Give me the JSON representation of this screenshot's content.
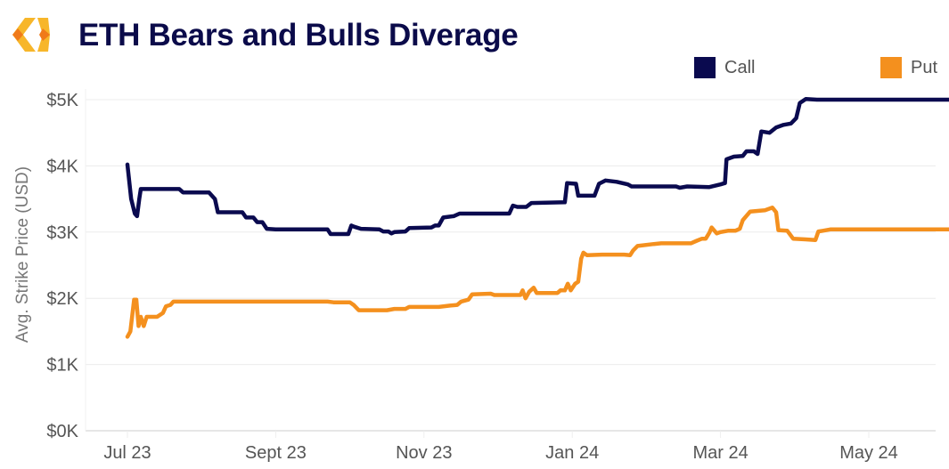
{
  "header": {
    "title": "ETH Bears and Bulls Diverage",
    "logo_icon": "hexagon-brackets-logo-icon"
  },
  "colors": {
    "call": "#0a0a4f",
    "put": "#f4901e",
    "title": "#0b0b4a",
    "grid": "#ececec"
  },
  "chart_data": {
    "type": "line",
    "title": "ETH Bears and Bulls Diverage",
    "xlabel": "",
    "ylabel": "Avg. Strike Price (USD)",
    "ylim": [
      0,
      5
    ],
    "y_unit": "thousand USD",
    "yticks": [
      0,
      1,
      2,
      3,
      4,
      5
    ],
    "ytick_labels": [
      "$0K",
      "$1K",
      "$2K",
      "$3K",
      "$4K",
      "$5K"
    ],
    "x_unit": "months since 2023-07-01",
    "xlim": [
      -0.2,
      11.5
    ],
    "xticks": [
      0,
      2,
      4,
      6,
      8,
      10
    ],
    "xtick_labels": [
      "Jul 23",
      "Sept 23",
      "Nov 23",
      "Jan 24",
      "Mar 24",
      "May 24"
    ],
    "grid": "horizontal",
    "legend_position": "top",
    "legend": [
      "Call",
      "Put"
    ],
    "series": [
      {
        "name": "Call",
        "points": [
          [
            0.0,
            4.02
          ],
          [
            0.05,
            3.5
          ],
          [
            0.1,
            3.28
          ],
          [
            0.13,
            3.24
          ],
          [
            0.16,
            3.5
          ],
          [
            0.18,
            3.65
          ],
          [
            0.5,
            3.65
          ],
          [
            0.7,
            3.65
          ],
          [
            0.75,
            3.6
          ],
          [
            1.1,
            3.6
          ],
          [
            1.18,
            3.5
          ],
          [
            1.22,
            3.3
          ],
          [
            1.55,
            3.3
          ],
          [
            1.6,
            3.22
          ],
          [
            1.7,
            3.22
          ],
          [
            1.75,
            3.15
          ],
          [
            1.82,
            3.15
          ],
          [
            1.88,
            3.05
          ],
          [
            2.0,
            3.04
          ],
          [
            2.5,
            3.04
          ],
          [
            2.7,
            3.04
          ],
          [
            2.74,
            2.97
          ],
          [
            2.98,
            2.97
          ],
          [
            3.02,
            3.1
          ],
          [
            3.06,
            3.08
          ],
          [
            3.15,
            3.05
          ],
          [
            3.4,
            3.04
          ],
          [
            3.45,
            3.01
          ],
          [
            3.52,
            3.01
          ],
          [
            3.56,
            2.98
          ],
          [
            3.6,
            3.0
          ],
          [
            3.75,
            3.01
          ],
          [
            3.8,
            3.06
          ],
          [
            4.1,
            3.07
          ],
          [
            4.15,
            3.1
          ],
          [
            4.2,
            3.1
          ],
          [
            4.26,
            3.22
          ],
          [
            4.4,
            3.24
          ],
          [
            4.48,
            3.28
          ],
          [
            5.0,
            3.28
          ],
          [
            5.15,
            3.28
          ],
          [
            5.2,
            3.4
          ],
          [
            5.26,
            3.38
          ],
          [
            5.38,
            3.38
          ],
          [
            5.45,
            3.44
          ],
          [
            5.9,
            3.45
          ],
          [
            5.93,
            3.74
          ],
          [
            6.05,
            3.73
          ],
          [
            6.08,
            3.55
          ],
          [
            6.3,
            3.55
          ],
          [
            6.36,
            3.73
          ],
          [
            6.45,
            3.78
          ],
          [
            6.6,
            3.76
          ],
          [
            6.75,
            3.72
          ],
          [
            6.8,
            3.69
          ],
          [
            7.1,
            3.69
          ],
          [
            7.4,
            3.69
          ],
          [
            7.45,
            3.67
          ],
          [
            7.55,
            3.69
          ],
          [
            7.85,
            3.68
          ],
          [
            8.0,
            3.72
          ],
          [
            8.06,
            3.74
          ],
          [
            8.08,
            4.1
          ],
          [
            8.18,
            4.14
          ],
          [
            8.3,
            4.15
          ],
          [
            8.35,
            4.22
          ],
          [
            8.45,
            4.22
          ],
          [
            8.5,
            4.18
          ],
          [
            8.55,
            4.52
          ],
          [
            8.66,
            4.5
          ],
          [
            8.75,
            4.58
          ],
          [
            8.85,
            4.62
          ],
          [
            8.95,
            4.64
          ],
          [
            9.02,
            4.72
          ],
          [
            9.07,
            4.95
          ],
          [
            9.15,
            5.01
          ],
          [
            9.3,
            5.0
          ],
          [
            10.0,
            5.0
          ],
          [
            11.2,
            5.0
          ]
        ]
      },
      {
        "name": "Put",
        "points": [
          [
            0.0,
            1.42
          ],
          [
            0.04,
            1.5
          ],
          [
            0.09,
            1.98
          ],
          [
            0.12,
            1.98
          ],
          [
            0.15,
            1.58
          ],
          [
            0.18,
            1.72
          ],
          [
            0.22,
            1.58
          ],
          [
            0.26,
            1.72
          ],
          [
            0.35,
            1.72
          ],
          [
            0.4,
            1.72
          ],
          [
            0.48,
            1.78
          ],
          [
            0.52,
            1.88
          ],
          [
            0.58,
            1.9
          ],
          [
            0.62,
            1.95
          ],
          [
            1.0,
            1.95
          ],
          [
            2.0,
            1.95
          ],
          [
            2.7,
            1.95
          ],
          [
            2.78,
            1.94
          ],
          [
            3.0,
            1.94
          ],
          [
            3.05,
            1.9
          ],
          [
            3.12,
            1.82
          ],
          [
            3.3,
            1.82
          ],
          [
            3.5,
            1.82
          ],
          [
            3.6,
            1.84
          ],
          [
            3.75,
            1.84
          ],
          [
            3.8,
            1.87
          ],
          [
            4.2,
            1.87
          ],
          [
            4.35,
            1.89
          ],
          [
            4.45,
            1.9
          ],
          [
            4.5,
            1.95
          ],
          [
            4.6,
            1.98
          ],
          [
            4.65,
            2.06
          ],
          [
            4.9,
            2.07
          ],
          [
            4.95,
            2.05
          ],
          [
            5.3,
            2.05
          ],
          [
            5.33,
            2.12
          ],
          [
            5.37,
            2.0
          ],
          [
            5.42,
            2.1
          ],
          [
            5.48,
            2.16
          ],
          [
            5.52,
            2.08
          ],
          [
            5.8,
            2.08
          ],
          [
            5.84,
            2.12
          ],
          [
            5.9,
            2.12
          ],
          [
            5.94,
            2.22
          ],
          [
            5.98,
            2.12
          ],
          [
            6.04,
            2.22
          ],
          [
            6.08,
            2.25
          ],
          [
            6.12,
            2.6
          ],
          [
            6.15,
            2.69
          ],
          [
            6.2,
            2.65
          ],
          [
            6.4,
            2.66
          ],
          [
            6.6,
            2.66
          ],
          [
            6.7,
            2.66
          ],
          [
            6.78,
            2.65
          ],
          [
            6.82,
            2.72
          ],
          [
            6.88,
            2.79
          ],
          [
            7.1,
            2.82
          ],
          [
            7.2,
            2.83
          ],
          [
            7.6,
            2.83
          ],
          [
            7.68,
            2.87
          ],
          [
            7.75,
            2.9
          ],
          [
            7.8,
            2.9
          ],
          [
            7.85,
            2.99
          ],
          [
            7.88,
            3.07
          ],
          [
            7.95,
            2.98
          ],
          [
            8.0,
            3.0
          ],
          [
            8.1,
            3.02
          ],
          [
            8.2,
            3.02
          ],
          [
            8.26,
            3.05
          ],
          [
            8.3,
            3.18
          ],
          [
            8.4,
            3.31
          ],
          [
            8.6,
            3.33
          ],
          [
            8.7,
            3.37
          ],
          [
            8.75,
            3.3
          ],
          [
            8.78,
            3.03
          ],
          [
            8.9,
            3.02
          ],
          [
            8.98,
            2.9
          ],
          [
            9.15,
            2.89
          ],
          [
            9.28,
            2.88
          ],
          [
            9.32,
            3.01
          ],
          [
            9.38,
            3.02
          ],
          [
            9.48,
            3.04
          ],
          [
            10.0,
            3.04
          ],
          [
            11.2,
            3.04
          ]
        ]
      }
    ]
  }
}
